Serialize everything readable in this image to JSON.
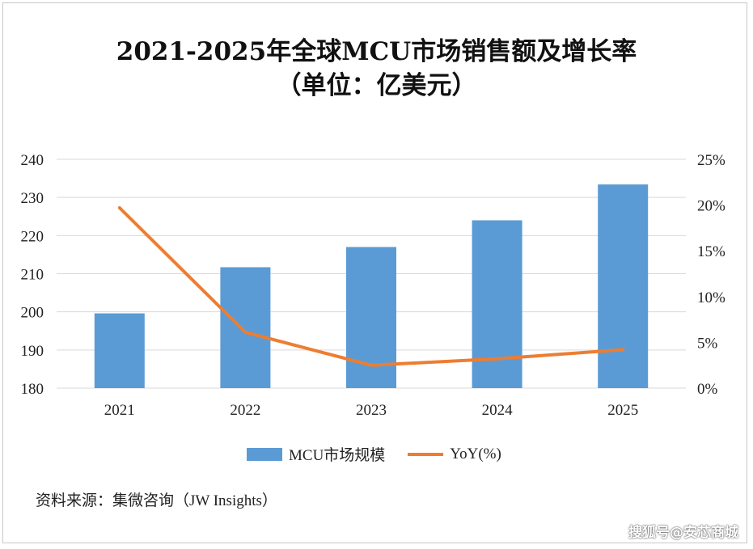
{
  "title_line1": "2021-2025年全球MCU市场销售额及增长率",
  "title_line2": "（单位：亿美元）",
  "source": "资料来源：集微咨询（JW Insights）",
  "watermark": "搜狐号@安芯商城",
  "colors": {
    "bar": "#5b9bd5",
    "line": "#ed7d31",
    "grid": "#d9d9d9"
  },
  "chart_data": {
    "type": "bar",
    "categories": [
      "2021",
      "2022",
      "2023",
      "2024",
      "2025"
    ],
    "series": [
      {
        "name": "MCU市场规模",
        "type": "bar",
        "axis": "left",
        "values": [
          199.6,
          211.7,
          217.0,
          224.0,
          233.4
        ]
      },
      {
        "name": "YoY(%)",
        "type": "line",
        "axis": "right",
        "values": [
          19.7,
          6.1,
          2.5,
          3.2,
          4.2
        ]
      }
    ],
    "y_left": {
      "range": [
        180,
        240
      ],
      "ticks": [
        "180",
        "190",
        "200",
        "210",
        "220",
        "230",
        "240"
      ]
    },
    "y_right": {
      "range": [
        0,
        25
      ],
      "ticks": [
        "0%",
        "5%",
        "10%",
        "15%",
        "20%",
        "25%"
      ]
    },
    "grid": true,
    "legend": "bottom"
  }
}
